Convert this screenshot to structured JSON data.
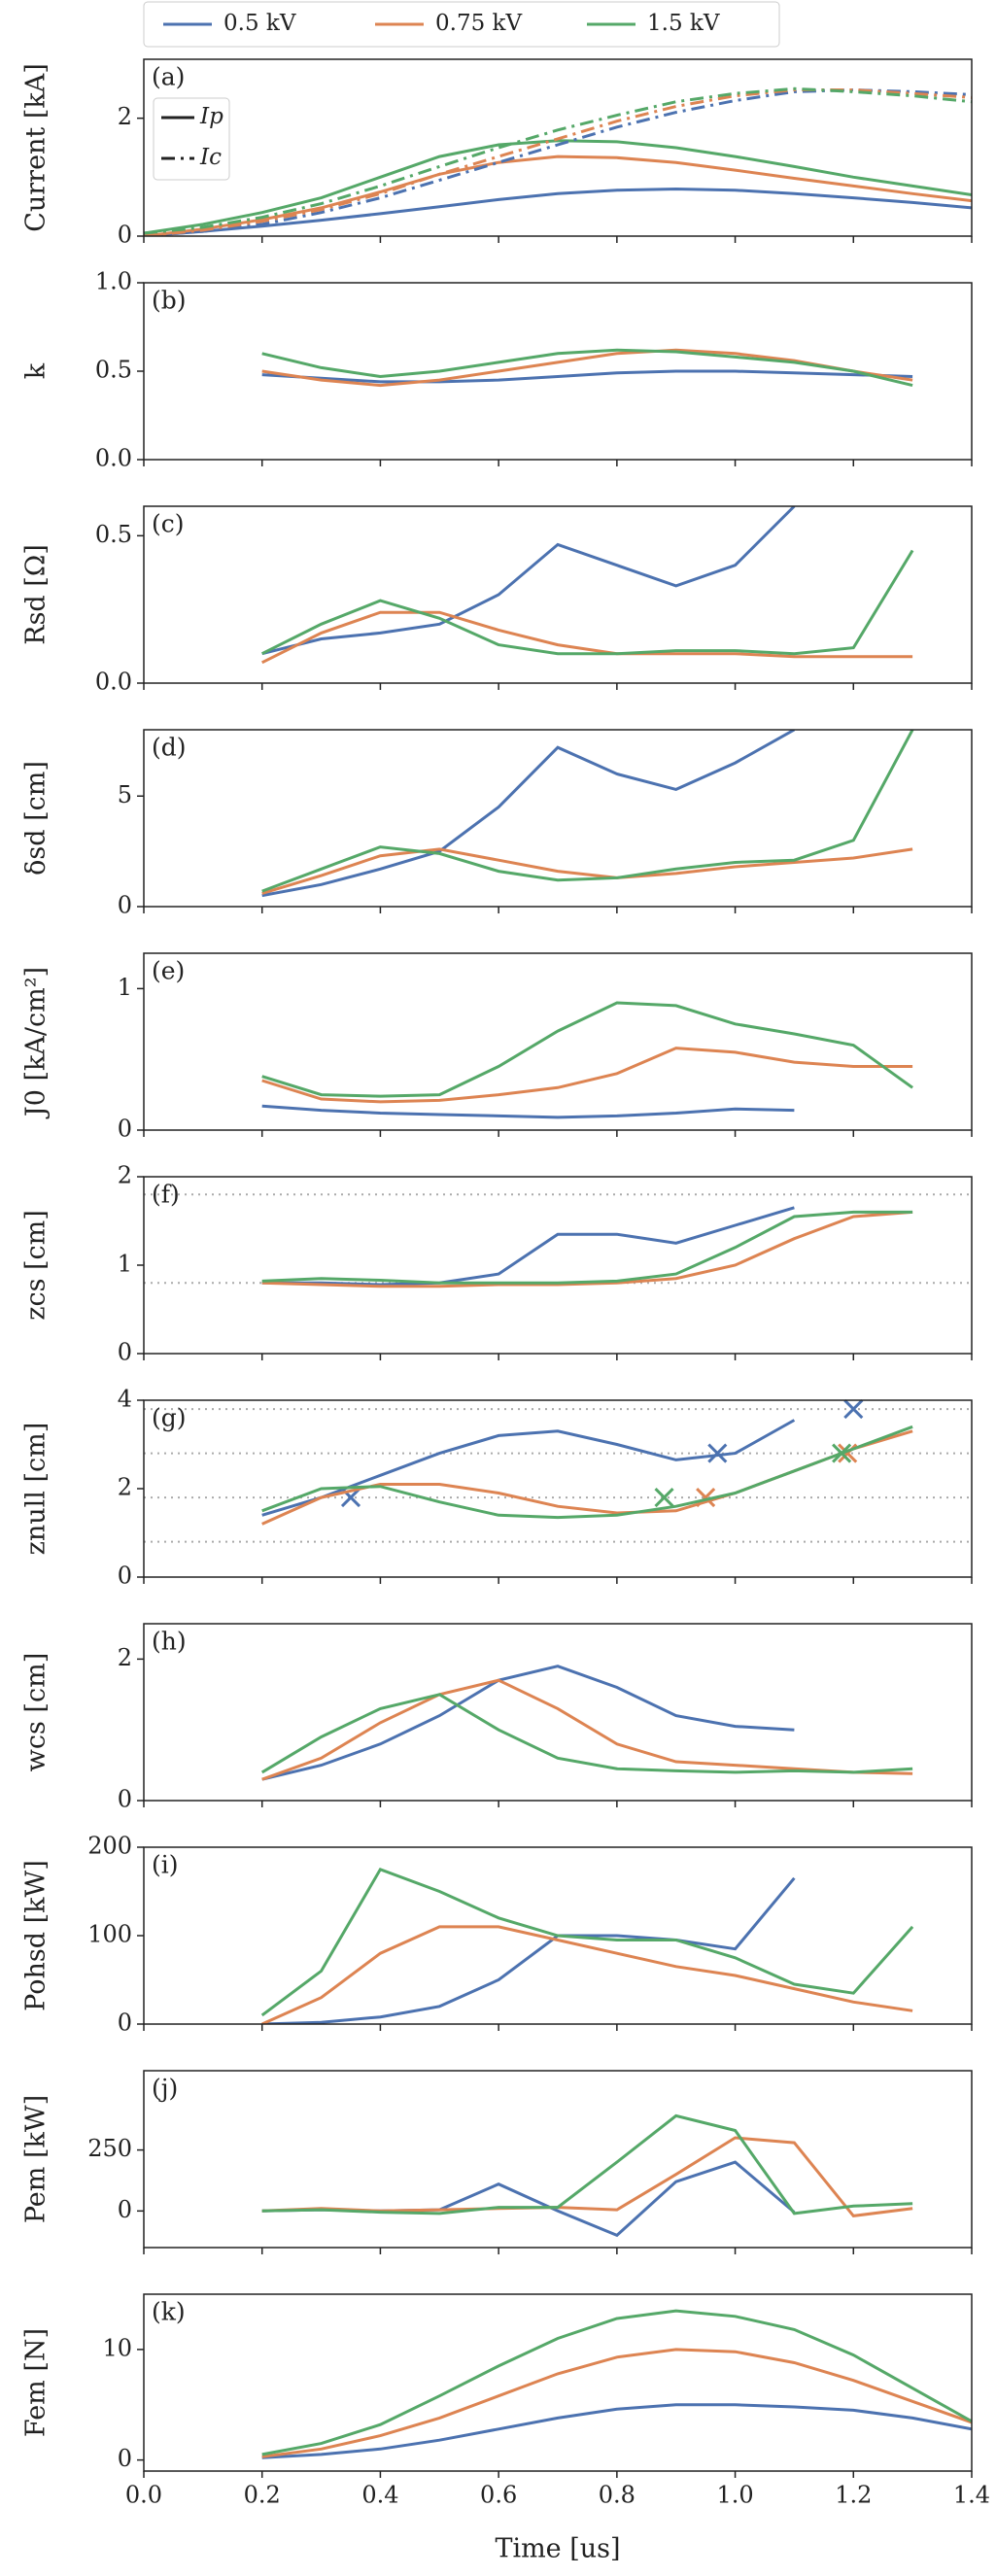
{
  "chart_data": [
    {
      "type": "line",
      "panel_label": "(a)",
      "ylabel": "Current [kA]",
      "ylim": [
        0,
        3
      ],
      "yticks": [
        0,
        2
      ],
      "x": [
        0,
        0.1,
        0.2,
        0.3,
        0.4,
        0.5,
        0.6,
        0.7,
        0.8,
        0.9,
        1.0,
        1.1,
        1.2,
        1.3,
        1.4
      ],
      "style_legend": [
        {
          "label": "Ip",
          "style": "solid"
        },
        {
          "label": "Ic",
          "style": "dashdot"
        }
      ],
      "series": [
        {
          "name": "0.5 kV",
          "color": "#4c72b0",
          "style": "solid",
          "values": [
            0,
            0.08,
            0.17,
            0.27,
            0.38,
            0.5,
            0.62,
            0.72,
            0.78,
            0.8,
            0.78,
            0.72,
            0.65,
            0.57,
            0.48
          ]
        },
        {
          "name": "0.75 kV",
          "color": "#dd8452",
          "style": "solid",
          "values": [
            0,
            0.12,
            0.28,
            0.48,
            0.75,
            1.05,
            1.25,
            1.35,
            1.33,
            1.25,
            1.12,
            0.98,
            0.85,
            0.72,
            0.6
          ]
        },
        {
          "name": "1.5 kV",
          "color": "#55a868",
          "style": "solid",
          "values": [
            0.05,
            0.2,
            0.4,
            0.65,
            1.0,
            1.35,
            1.55,
            1.62,
            1.6,
            1.5,
            1.35,
            1.18,
            1.0,
            0.85,
            0.7
          ]
        },
        {
          "name": "0.5 kV",
          "color": "#4c72b0",
          "style": "dashdot",
          "values": [
            0,
            0.08,
            0.2,
            0.4,
            0.65,
            0.95,
            1.25,
            1.55,
            1.85,
            2.1,
            2.3,
            2.45,
            2.48,
            2.45,
            2.4
          ]
        },
        {
          "name": "0.75 kV",
          "color": "#dd8452",
          "style": "dashdot",
          "values": [
            0,
            0.1,
            0.25,
            0.45,
            0.72,
            1.05,
            1.35,
            1.65,
            1.95,
            2.2,
            2.38,
            2.48,
            2.48,
            2.42,
            2.35
          ]
        },
        {
          "name": "1.5 kV",
          "color": "#55a868",
          "style": "dashdot",
          "values": [
            0.05,
            0.15,
            0.32,
            0.55,
            0.85,
            1.18,
            1.5,
            1.8,
            2.05,
            2.28,
            2.42,
            2.5,
            2.45,
            2.38,
            2.28
          ]
        }
      ]
    },
    {
      "type": "line",
      "panel_label": "(b)",
      "ylabel": "k",
      "ylim": [
        0,
        1
      ],
      "yticks": [
        {
          "value": 0,
          "label": "0.0"
        },
        0.5,
        {
          "value": 1,
          "label": "1.0"
        }
      ],
      "x": [
        0.2,
        0.3,
        0.4,
        0.5,
        0.6,
        0.7,
        0.8,
        0.9,
        1.0,
        1.1,
        1.2,
        1.3
      ],
      "series": [
        {
          "name": "0.5 kV",
          "color": "#4c72b0",
          "values": [
            0.48,
            0.46,
            0.44,
            0.44,
            0.45,
            0.47,
            0.49,
            0.5,
            0.5,
            0.49,
            0.48,
            0.47
          ]
        },
        {
          "name": "0.75 kV",
          "color": "#dd8452",
          "values": [
            0.5,
            0.45,
            0.42,
            0.45,
            0.5,
            0.55,
            0.6,
            0.62,
            0.6,
            0.56,
            0.5,
            0.45
          ]
        },
        {
          "name": "1.5 kV",
          "color": "#55a868",
          "values": [
            0.6,
            0.52,
            0.47,
            0.5,
            0.55,
            0.6,
            0.62,
            0.61,
            0.58,
            0.55,
            0.5,
            0.42
          ]
        }
      ]
    },
    {
      "type": "line",
      "panel_label": "(c)",
      "ylabel": "Rsd [Ω]",
      "ylim": [
        0,
        0.6
      ],
      "yticks": [
        {
          "value": 0,
          "label": "0.0"
        },
        0.5
      ],
      "x": [
        0.2,
        0.3,
        0.4,
        0.5,
        0.6,
        0.7,
        0.8,
        0.9,
        1.0,
        1.1,
        1.2,
        1.3
      ],
      "series": [
        {
          "name": "0.5 kV",
          "color": "#4c72b0",
          "values": [
            0.1,
            0.15,
            0.17,
            0.2,
            0.3,
            0.47,
            0.4,
            0.33,
            0.4,
            0.6,
            null,
            null
          ]
        },
        {
          "name": "0.75 kV",
          "color": "#dd8452",
          "values": [
            0.07,
            0.17,
            0.24,
            0.24,
            0.18,
            0.13,
            0.1,
            0.1,
            0.1,
            0.09,
            0.09,
            0.09
          ]
        },
        {
          "name": "1.5 kV",
          "color": "#55a868",
          "values": [
            0.1,
            0.2,
            0.28,
            0.22,
            0.13,
            0.1,
            0.1,
            0.11,
            0.11,
            0.1,
            0.12,
            0.45
          ]
        }
      ]
    },
    {
      "type": "line",
      "panel_label": "(d)",
      "ylabel": "δsd [cm]",
      "ylim": [
        0,
        8
      ],
      "yticks": [
        0,
        5
      ],
      "x": [
        0.2,
        0.3,
        0.4,
        0.5,
        0.6,
        0.7,
        0.8,
        0.9,
        1.0,
        1.1,
        1.2,
        1.3
      ],
      "series": [
        {
          "name": "0.5 kV",
          "color": "#4c72b0",
          "values": [
            0.5,
            1.0,
            1.7,
            2.5,
            4.5,
            7.2,
            6.0,
            5.3,
            6.5,
            8.0,
            null,
            null
          ]
        },
        {
          "name": "0.75 kV",
          "color": "#dd8452",
          "values": [
            0.6,
            1.4,
            2.3,
            2.6,
            2.1,
            1.6,
            1.3,
            1.5,
            1.8,
            2.0,
            2.2,
            2.6
          ]
        },
        {
          "name": "1.5 kV",
          "color": "#55a868",
          "values": [
            0.7,
            1.7,
            2.7,
            2.4,
            1.6,
            1.2,
            1.3,
            1.7,
            2.0,
            2.1,
            3.0,
            8.0
          ]
        }
      ]
    },
    {
      "type": "line",
      "panel_label": "(e)",
      "ylabel": "J0 [kA/cm²]",
      "ylim": [
        0,
        1.25
      ],
      "yticks": [
        0,
        1
      ],
      "x": [
        0.2,
        0.3,
        0.4,
        0.5,
        0.6,
        0.7,
        0.8,
        0.9,
        1.0,
        1.1,
        1.2,
        1.3
      ],
      "series": [
        {
          "name": "0.5 kV",
          "color": "#4c72b0",
          "values": [
            0.17,
            0.14,
            0.12,
            0.11,
            0.1,
            0.09,
            0.1,
            0.12,
            0.15,
            0.14,
            null,
            null
          ]
        },
        {
          "name": "0.75 kV",
          "color": "#dd8452",
          "values": [
            0.35,
            0.22,
            0.2,
            0.21,
            0.25,
            0.3,
            0.4,
            0.58,
            0.55,
            0.48,
            0.45,
            0.45
          ]
        },
        {
          "name": "1.5 kV",
          "color": "#55a868",
          "values": [
            0.38,
            0.25,
            0.24,
            0.25,
            0.45,
            0.7,
            0.9,
            0.88,
            0.75,
            0.68,
            0.6,
            0.3
          ]
        }
      ]
    },
    {
      "type": "line",
      "panel_label": "(f)",
      "ylabel": "zcs [cm]",
      "ylim": [
        0,
        2
      ],
      "yticks": [
        0,
        1,
        2
      ],
      "hlines": [
        0.8,
        1.8
      ],
      "x": [
        0.2,
        0.3,
        0.4,
        0.5,
        0.6,
        0.7,
        0.8,
        0.9,
        1.0,
        1.1,
        1.2,
        1.3
      ],
      "series": [
        {
          "name": "0.5 kV",
          "color": "#4c72b0",
          "values": [
            0.8,
            0.8,
            0.78,
            0.8,
            0.9,
            1.35,
            1.35,
            1.25,
            1.45,
            1.65,
            null,
            null
          ]
        },
        {
          "name": "0.75 kV",
          "color": "#dd8452",
          "values": [
            0.8,
            0.78,
            0.76,
            0.76,
            0.78,
            0.78,
            0.8,
            0.85,
            1.0,
            1.3,
            1.55,
            1.6
          ]
        },
        {
          "name": "1.5 kV",
          "color": "#55a868",
          "values": [
            0.82,
            0.85,
            0.83,
            0.8,
            0.8,
            0.8,
            0.82,
            0.9,
            1.2,
            1.55,
            1.6,
            1.6
          ]
        }
      ]
    },
    {
      "type": "line",
      "panel_label": "(g)",
      "ylabel": "znull [cm]",
      "ylim": [
        0,
        4
      ],
      "yticks": [
        0,
        2,
        4
      ],
      "hlines": [
        0.8,
        1.8,
        2.8,
        3.8
      ],
      "x": [
        0.2,
        0.3,
        0.4,
        0.5,
        0.6,
        0.7,
        0.8,
        0.9,
        1.0,
        1.1,
        1.2,
        1.3
      ],
      "series": [
        {
          "name": "0.5 kV",
          "color": "#4c72b0",
          "values": [
            1.4,
            1.8,
            2.3,
            2.8,
            3.2,
            3.3,
            3.0,
            2.65,
            2.8,
            3.55,
            null,
            null
          ],
          "cross_x": [
            0.35,
            0.97,
            1.2
          ],
          "cross_y": [
            1.8,
            2.8,
            3.8
          ]
        },
        {
          "name": "0.75 kV",
          "color": "#dd8452",
          "values": [
            1.2,
            1.8,
            2.1,
            2.1,
            1.9,
            1.6,
            1.45,
            1.5,
            1.9,
            2.4,
            2.9,
            3.3
          ],
          "cross_x": [
            0.95,
            1.19
          ],
          "cross_y": [
            1.8,
            2.8
          ]
        },
        {
          "name": "1.5 kV",
          "color": "#55a868",
          "values": [
            1.5,
            2.0,
            2.05,
            1.7,
            1.4,
            1.35,
            1.4,
            1.6,
            1.9,
            2.4,
            2.9,
            3.4
          ],
          "cross_x": [
            0.88,
            1.18
          ],
          "cross_y": [
            1.8,
            2.8
          ]
        }
      ]
    },
    {
      "type": "line",
      "panel_label": "(h)",
      "ylabel": "wcs [cm]",
      "ylim": [
        0,
        2.5
      ],
      "yticks": [
        0,
        2
      ],
      "x": [
        0.2,
        0.3,
        0.4,
        0.5,
        0.6,
        0.7,
        0.8,
        0.9,
        1.0,
        1.1,
        1.2,
        1.3
      ],
      "series": [
        {
          "name": "0.5 kV",
          "color": "#4c72b0",
          "values": [
            0.3,
            0.5,
            0.8,
            1.2,
            1.7,
            1.9,
            1.6,
            1.2,
            1.05,
            1.0,
            null,
            null
          ]
        },
        {
          "name": "0.75 kV",
          "color": "#dd8452",
          "values": [
            0.3,
            0.6,
            1.1,
            1.5,
            1.7,
            1.3,
            0.8,
            0.55,
            0.5,
            0.45,
            0.4,
            0.38
          ]
        },
        {
          "name": "1.5 kV",
          "color": "#55a868",
          "values": [
            0.4,
            0.9,
            1.3,
            1.5,
            1.0,
            0.6,
            0.45,
            0.42,
            0.4,
            0.42,
            0.4,
            0.45
          ]
        }
      ]
    },
    {
      "type": "line",
      "panel_label": "(i)",
      "ylabel": "Pohsd [kW]",
      "ylim": [
        0,
        200
      ],
      "yticks": [
        0,
        100,
        200
      ],
      "x": [
        0.2,
        0.3,
        0.4,
        0.5,
        0.6,
        0.7,
        0.8,
        0.9,
        1.0,
        1.1,
        1.2,
        1.3
      ],
      "series": [
        {
          "name": "0.5 kV",
          "color": "#4c72b0",
          "values": [
            0,
            2,
            8,
            20,
            50,
            100,
            100,
            95,
            85,
            165,
            null,
            null
          ]
        },
        {
          "name": "0.75 kV",
          "color": "#dd8452",
          "values": [
            0,
            30,
            80,
            110,
            110,
            95,
            80,
            65,
            55,
            40,
            25,
            15
          ]
        },
        {
          "name": "1.5 kV",
          "color": "#55a868",
          "values": [
            10,
            60,
            175,
            150,
            120,
            100,
            95,
            95,
            75,
            45,
            35,
            110
          ]
        }
      ]
    },
    {
      "type": "line",
      "panel_label": "(j)",
      "ylabel": "Pem [kW]",
      "ylim": [
        -150,
        575
      ],
      "yticks": [
        0,
        250
      ],
      "x": [
        0.2,
        0.3,
        0.4,
        0.5,
        0.6,
        0.7,
        0.8,
        0.9,
        1.0,
        1.1,
        1.2,
        1.3
      ],
      "series": [
        {
          "name": "0.5 kV",
          "color": "#4c72b0",
          "values": [
            0,
            5,
            0,
            5,
            110,
            0,
            -100,
            120,
            200,
            -5,
            null,
            null
          ]
        },
        {
          "name": "0.75 kV",
          "color": "#dd8452",
          "values": [
            0,
            10,
            0,
            5,
            10,
            15,
            5,
            150,
            300,
            280,
            -20,
            10
          ]
        },
        {
          "name": "1.5 kV",
          "color": "#55a868",
          "values": [
            0,
            5,
            -5,
            -10,
            15,
            15,
            200,
            390,
            330,
            -10,
            20,
            30
          ]
        }
      ]
    },
    {
      "type": "line",
      "panel_label": "(k)",
      "ylabel": "Fem [N]",
      "ylim": [
        -1,
        15
      ],
      "yticks": [
        0,
        10
      ],
      "xlabel": "Time [us]",
      "xlim": [
        0,
        1.4
      ],
      "xticks": [
        {
          "value": 0,
          "label": "0.0"
        },
        0.2,
        0.4,
        0.6,
        0.8,
        {
          "value": 1,
          "label": "1.0"
        },
        1.2,
        1.4
      ],
      "x": [
        0.2,
        0.3,
        0.4,
        0.5,
        0.6,
        0.7,
        0.8,
        0.9,
        1.0,
        1.1,
        1.2,
        1.3,
        1.4
      ],
      "series": [
        {
          "name": "0.5 kV",
          "color": "#4c72b0",
          "values": [
            0.2,
            0.5,
            1,
            1.8,
            2.8,
            3.8,
            4.6,
            5.0,
            5.0,
            4.8,
            4.5,
            3.8,
            2.8
          ]
        },
        {
          "name": "0.75 kV",
          "color": "#dd8452",
          "values": [
            0.3,
            1.0,
            2.2,
            3.8,
            5.8,
            7.8,
            9.3,
            10,
            9.8,
            8.8,
            7.2,
            5.3,
            3.4
          ]
        },
        {
          "name": "1.5 kV",
          "color": "#55a868",
          "values": [
            0.5,
            1.5,
            3.2,
            5.8,
            8.5,
            11,
            12.8,
            13.5,
            13,
            11.8,
            9.5,
            6.5,
            3.5
          ]
        }
      ]
    }
  ]
}
